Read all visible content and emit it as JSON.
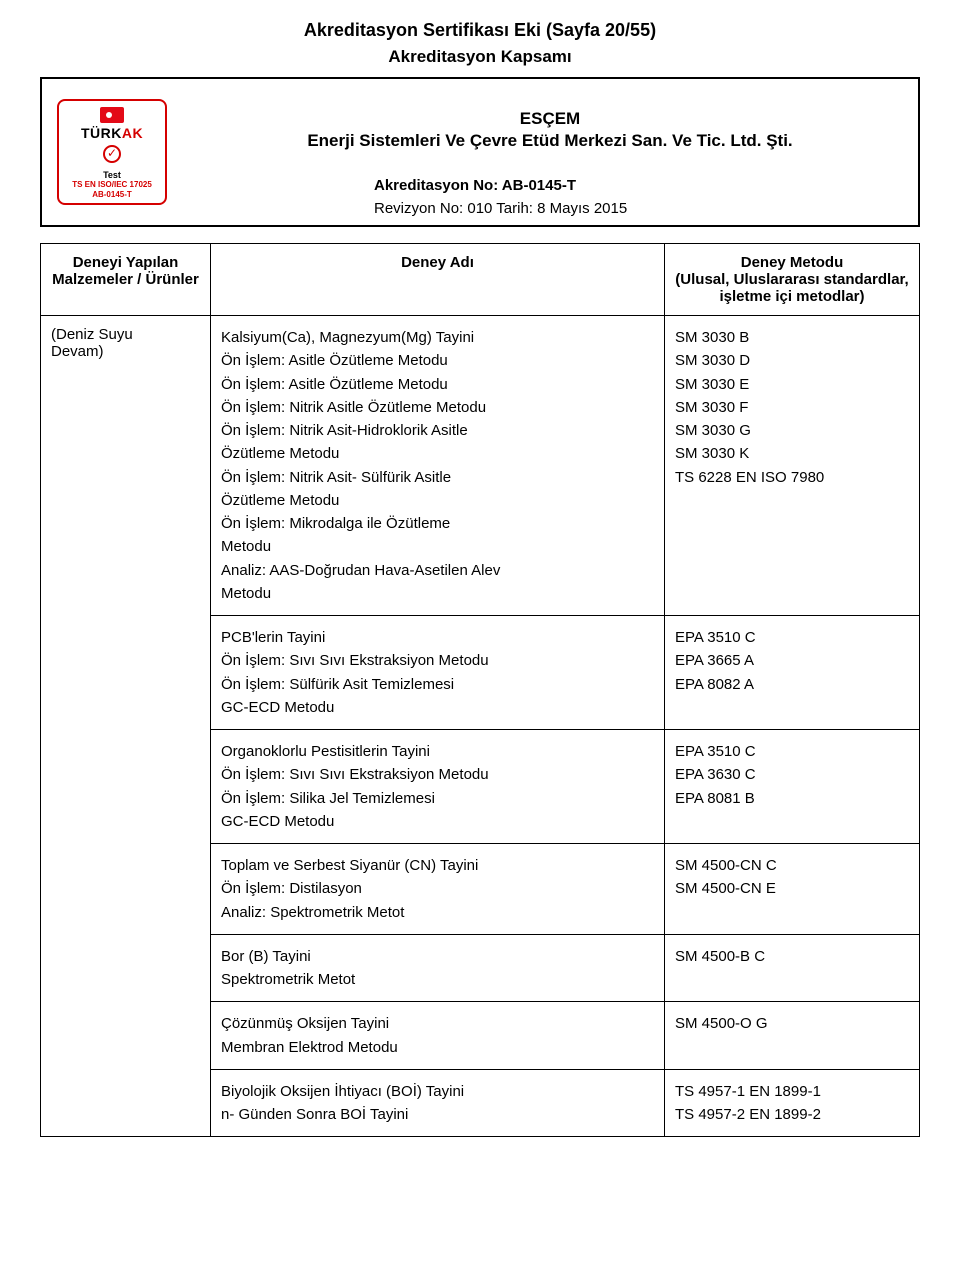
{
  "document": {
    "title": "Akreditasyon Sertifikası Eki (Sayfa 20/55)",
    "subtitle": "Akreditasyon Kapsamı"
  },
  "logo": {
    "brand_prefix": "TÜRK",
    "brand_suffix": "AK",
    "test_label": "Test",
    "standard_line": "TS EN ISO/IEC 17025",
    "ref_line": "AB-0145-T"
  },
  "organization": {
    "line1": "ESÇEM",
    "line2": "Enerji Sistemleri Ve Çevre Etüd Merkezi San. Ve Tic. Ltd. Şti."
  },
  "accreditation": {
    "number_label": "Akreditasyon No: AB-0145-T",
    "revision_label": "Revizyon No: 010 Tarih: 8 Mayıs 2015"
  },
  "table": {
    "headers": {
      "col1_line1": "Deneyi Yapılan",
      "col1_line2": "Malzemeler / Ürünler",
      "col2": "Deney Adı",
      "col3_line1": "Deney Metodu",
      "col3_line2": "(Ulusal, Uluslararası standardlar,",
      "col3_line3": "işletme içi metodlar)"
    },
    "material": {
      "line1": "(Deniz Suyu",
      "line2": "Devam)"
    },
    "rows": [
      {
        "test_lines": [
          "Kalsiyum(Ca), Magnezyum(Mg) Tayini",
          "Ön İşlem: Asitle Özütleme Metodu",
          "Ön İşlem: Asitle Özütleme Metodu",
          "Ön İşlem: Nitrik Asitle Özütleme Metodu",
          "Ön İşlem: Nitrik Asit-Hidroklorik Asitle",
          "Özütleme Metodu",
          "Ön İşlem: Nitrik Asit- Sülfürik Asitle",
          "Özütleme Metodu",
          "Ön İşlem: Mikrodalga ile Özütleme",
          "Metodu",
          "Analiz: AAS-Doğrudan Hava-Asetilen Alev",
          "Metodu"
        ],
        "method_lines": [
          "SM 3030 B",
          "SM 3030 D",
          "SM 3030 E",
          "SM 3030 F",
          "SM 3030 G",
          "SM 3030 K",
          "TS 6228 EN ISO 7980"
        ]
      },
      {
        "test_lines": [
          "PCB'lerin Tayini",
          "Ön İşlem: Sıvı Sıvı Ekstraksiyon Metodu",
          "Ön İşlem: Sülfürik Asit Temizlemesi",
          "GC-ECD Metodu"
        ],
        "method_lines": [
          "EPA 3510 C",
          "EPA 3665 A",
          "EPA 8082 A"
        ]
      },
      {
        "test_lines": [
          "Organoklorlu Pestisitlerin Tayini",
          "Ön İşlem: Sıvı Sıvı Ekstraksiyon Metodu",
          "Ön İşlem: Silika Jel Temizlemesi",
          "GC-ECD Metodu"
        ],
        "method_lines": [
          "EPA 3510 C",
          "EPA 3630 C",
          "EPA 8081 B"
        ]
      },
      {
        "test_lines": [
          "Toplam ve Serbest Siyanür (CN) Tayini",
          "Ön İşlem: Distilasyon",
          "Analiz: Spektrometrik Metot"
        ],
        "method_lines": [
          "SM 4500-CN C",
          "SM 4500-CN E"
        ]
      },
      {
        "test_lines": [
          "Bor (B) Tayini",
          "Spektrometrik Metot"
        ],
        "method_lines": [
          "SM 4500-B C"
        ]
      },
      {
        "test_lines": [
          "Çözünmüş Oksijen Tayini",
          "Membran Elektrod Metodu"
        ],
        "method_lines": [
          "SM 4500-O G"
        ]
      },
      {
        "test_lines": [
          "Biyolojik Oksijen İhtiyacı (BOİ) Tayini",
          "n- Günden Sonra BOİ Tayini"
        ],
        "method_lines": [
          "TS 4957-1 EN 1899-1",
          "TS 4957-2 EN 1899-2"
        ]
      }
    ]
  }
}
